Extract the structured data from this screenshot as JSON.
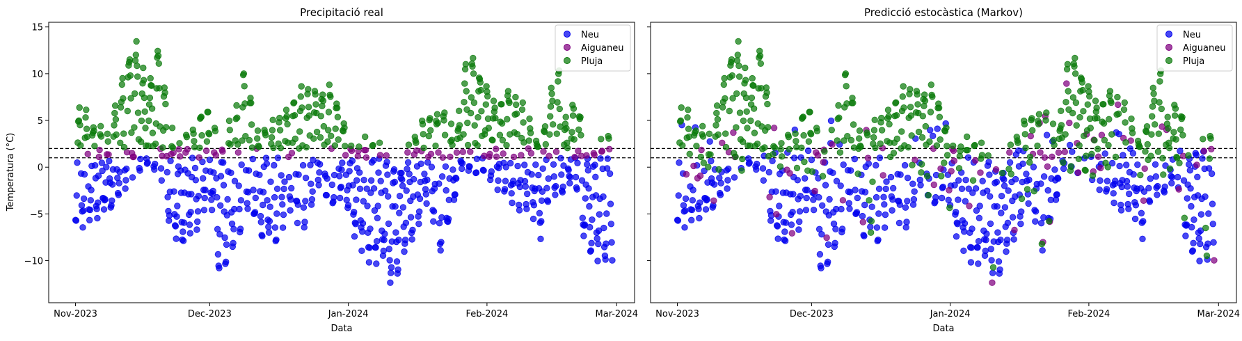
{
  "chart_data": [
    {
      "type": "scatter",
      "title": "Precipitació real",
      "xlabel": "Data",
      "ylabel": "Temperatura (°C)",
      "x_range": [
        "2023-10-26",
        "2024-03-05"
      ],
      "ylim": [
        -14.5,
        15.5
      ],
      "x_ticks": [
        {
          "date": "2023-11-01",
          "label": "Nov-2023"
        },
        {
          "date": "2023-12-01",
          "label": "Dec-2023"
        },
        {
          "date": "2024-01-01",
          "label": "Jan-2024"
        },
        {
          "date": "2024-02-01",
          "label": "Feb-2024"
        },
        {
          "date": "2024-03-01",
          "label": "Mar-2024"
        }
      ],
      "y_ticks": [
        15,
        10,
        5,
        0,
        -5,
        -10
      ],
      "thresholds": [
        2,
        1
      ],
      "legend_position": "top-right",
      "grid": false,
      "mode": "real",
      "series": [
        {
          "name": "Neu",
          "color": "#0000ee"
        },
        {
          "name": "Aiguaneu",
          "color": "#800080"
        },
        {
          "name": "Pluja",
          "color": "#0a7a0a"
        }
      ],
      "temperature_profile": [
        {
          "date": "2023-11-01",
          "min": -6,
          "max": 6
        },
        {
          "date": "2023-11-05",
          "min": -5.5,
          "max": 5
        },
        {
          "date": "2023-11-08",
          "min": -4,
          "max": 2.5
        },
        {
          "date": "2023-11-12",
          "min": -2.5,
          "max": 10
        },
        {
          "date": "2023-11-14",
          "min": 0,
          "max": 13.8
        },
        {
          "date": "2023-11-17",
          "min": 0,
          "max": 8.5
        },
        {
          "date": "2023-11-19",
          "min": 0,
          "max": 11
        },
        {
          "date": "2023-11-20",
          "min": 0,
          "max": 13.7
        },
        {
          "date": "2023-11-22",
          "min": -6,
          "max": 4
        },
        {
          "date": "2023-11-24",
          "min": -8,
          "max": 2
        },
        {
          "date": "2023-11-28",
          "min": -6,
          "max": 4.5
        },
        {
          "date": "2023-12-01",
          "min": -3,
          "max": 5.5
        },
        {
          "date": "2023-12-03",
          "min": -11,
          "max": 2
        },
        {
          "date": "2023-12-07",
          "min": -8,
          "max": 6
        },
        {
          "date": "2023-12-09",
          "min": -4,
          "max": 10.5
        },
        {
          "date": "2023-12-12",
          "min": -7,
          "max": 3
        },
        {
          "date": "2023-12-15",
          "min": -8,
          "max": 5
        },
        {
          "date": "2023-12-19",
          "min": -4,
          "max": 7
        },
        {
          "date": "2023-12-22",
          "min": -6,
          "max": 8.5
        },
        {
          "date": "2023-12-26",
          "min": -1,
          "max": 7.5
        },
        {
          "date": "2023-12-28",
          "min": -4,
          "max": 8.5
        },
        {
          "date": "2023-12-31",
          "min": -2,
          "max": 4
        },
        {
          "date": "2024-01-02",
          "min": -6,
          "max": 2
        },
        {
          "date": "2024-01-05",
          "min": -9,
          "max": 2.5
        },
        {
          "date": "2024-01-09",
          "min": -10,
          "max": 1.5
        },
        {
          "date": "2024-01-11",
          "min": -13,
          "max": 0
        },
        {
          "date": "2024-01-13",
          "min": -9,
          "max": 0
        },
        {
          "date": "2024-01-16",
          "min": -7,
          "max": 3.5
        },
        {
          "date": "2024-01-19",
          "min": -3,
          "max": 5
        },
        {
          "date": "2024-01-22",
          "min": -9.5,
          "max": 6
        },
        {
          "date": "2024-01-25",
          "min": -3,
          "max": 3
        },
        {
          "date": "2024-01-27",
          "min": 0,
          "max": 10
        },
        {
          "date": "2024-01-29",
          "min": 0,
          "max": 12
        },
        {
          "date": "2024-02-01",
          "min": 0,
          "max": 8
        },
        {
          "date": "2024-02-04",
          "min": -2,
          "max": 6
        },
        {
          "date": "2024-02-06",
          "min": -3,
          "max": 8.5
        },
        {
          "date": "2024-02-09",
          "min": -4,
          "max": 6
        },
        {
          "date": "2024-02-11",
          "min": -4,
          "max": 4
        },
        {
          "date": "2024-02-13",
          "min": -7,
          "max": 2
        },
        {
          "date": "2024-02-15",
          "min": -2,
          "max": 7.5
        },
        {
          "date": "2024-02-17",
          "min": -4,
          "max": 11
        },
        {
          "date": "2024-02-19",
          "min": -1,
          "max": 4
        },
        {
          "date": "2024-02-21",
          "min": -2,
          "max": 7.5
        },
        {
          "date": "2024-02-23",
          "min": -8,
          "max": 1
        },
        {
          "date": "2024-02-25",
          "min": -9.5,
          "max": 1.5
        },
        {
          "date": "2024-02-28",
          "min": -9.5,
          "max": 3.5
        },
        {
          "date": "2024-02-29",
          "min": -9,
          "max": 2
        }
      ]
    },
    {
      "type": "scatter",
      "title": "Predicció estocàstica (Markov)",
      "xlabel": "Data",
      "ylabel": "",
      "x_range": [
        "2023-10-26",
        "2024-03-05"
      ],
      "ylim": [
        -14.5,
        15.5
      ],
      "x_ticks": [
        {
          "date": "2023-11-01",
          "label": "Nov-2023"
        },
        {
          "date": "2023-12-01",
          "label": "Dec-2023"
        },
        {
          "date": "2024-01-01",
          "label": "Jan-2024"
        },
        {
          "date": "2024-02-01",
          "label": "Feb-2024"
        },
        {
          "date": "2024-03-01",
          "label": "Mar-2024"
        }
      ],
      "y_ticks": [
        15,
        10,
        5,
        0,
        -5,
        -10
      ],
      "thresholds": [
        2,
        1
      ],
      "legend_position": "top-right",
      "grid": false,
      "mode": "stochastic",
      "series": [
        {
          "name": "Neu",
          "color": "#0000ee"
        },
        {
          "name": "Aiguaneu",
          "color": "#800080"
        },
        {
          "name": "Pluja",
          "color": "#0a7a0a"
        }
      ],
      "temperature_profile": "same-as-first"
    }
  ]
}
